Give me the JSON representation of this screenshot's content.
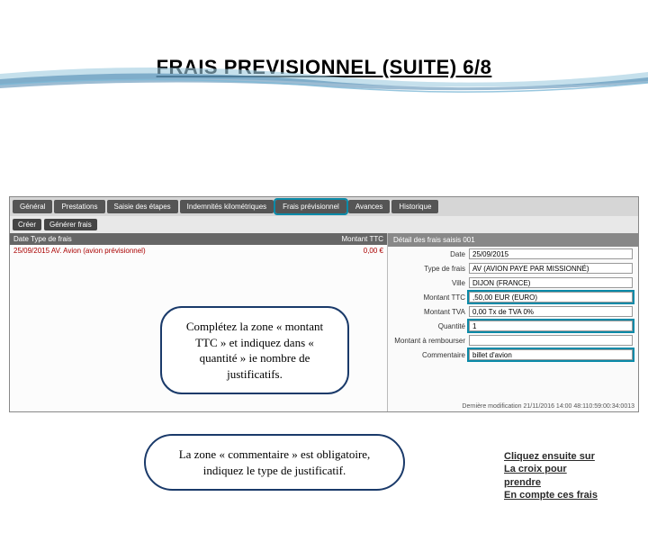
{
  "decoration": {
    "wave_colors": [
      "#9fcbe0",
      "#3a7aa8",
      "#7db8d6"
    ]
  },
  "title": "FRAIS PREVISIONNEL  (SUITE)  6/8",
  "app": {
    "tabs": [
      "Général",
      "Prestations",
      "Saisie des étapes",
      "Indemnités kilométriques",
      "Frais prévisionnel",
      "Avances",
      "Historique"
    ],
    "highlight_tab_index": 4,
    "toolbar": [
      "Créer",
      "Générer frais"
    ],
    "grid": {
      "headers_left": "Date   Type de frais",
      "headers_right": "Montant TTC",
      "row": {
        "left": "25/09/2015  AV. Avion (avion prévisionnel)",
        "right": "0,00 €"
      }
    },
    "right": {
      "panel_title": "Détail des frais saisis 001",
      "fields": [
        {
          "label": "Date",
          "value": "25/09/2015"
        },
        {
          "label": "Type de frais",
          "value": "AV (AVION PAYE PAR MISSIONNÉ)"
        },
        {
          "label": "Ville",
          "value": "DIJON (FRANCE)"
        },
        {
          "label": "Montant TTC",
          "value": ",50,00  EUR (EURO)",
          "hl": true
        },
        {
          "label": "Montant TVA",
          "value": "0,00  Tx de TVA  0%"
        },
        {
          "label": "Quantité",
          "value": "1",
          "hl": true
        },
        {
          "label": "Montant à rembourser",
          "value": ""
        },
        {
          "label": "Commentaire",
          "value": "billet d'avion",
          "hl": true
        }
      ],
      "last_modified": "Dernière modification 21/11/2016 14:00 48:110:59:00:34:0013"
    }
  },
  "callout1": "Complétez la zone « montant TTC » et indiquez dans « quantité » ie nombre de justificatifs.",
  "callout2": "La zone « commentaire » est obligatoire, indiquez le type de justificatif.",
  "side_note": "Cliquez ensuite sur\nLa croix pour\nprendre\nEn compte ces frais"
}
